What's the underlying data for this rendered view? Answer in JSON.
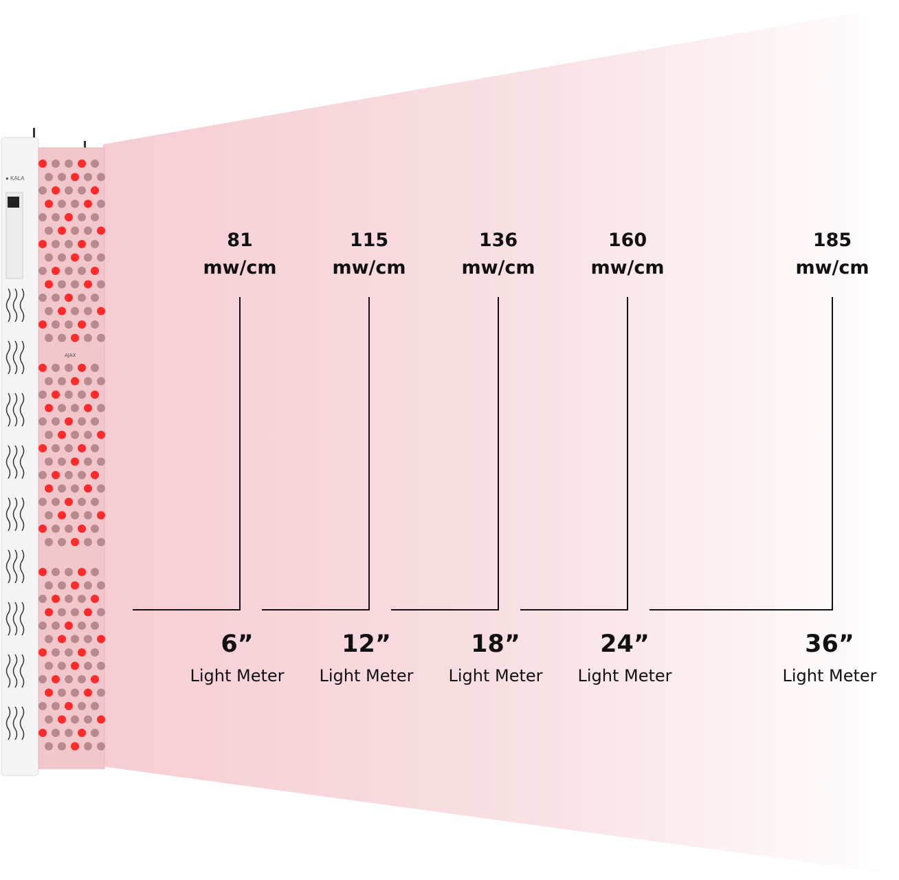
{
  "colors": {
    "beam_start": "#f5cdd3",
    "beam_end": "#ffffff",
    "led_red": "#ff2a2a",
    "led_dim": "#b88a90",
    "line": "#111111"
  },
  "device": {
    "brand_logo": "KALA",
    "panel_logo": "AJAX"
  },
  "measurements": [
    {
      "value": "81",
      "unit": "mw/cm",
      "distance": "6”",
      "label": "Light Meter"
    },
    {
      "value": "115",
      "unit": "mw/cm",
      "distance": "12”",
      "label": "Light Meter"
    },
    {
      "value": "136",
      "unit": "mw/cm",
      "distance": "18”",
      "label": "Light Meter"
    },
    {
      "value": "160",
      "unit": "mw/cm",
      "distance": "24”",
      "label": "Light Meter"
    },
    {
      "value": "185",
      "unit": "mw/cm",
      "distance": "36”",
      "label": "Light Meter"
    }
  ]
}
